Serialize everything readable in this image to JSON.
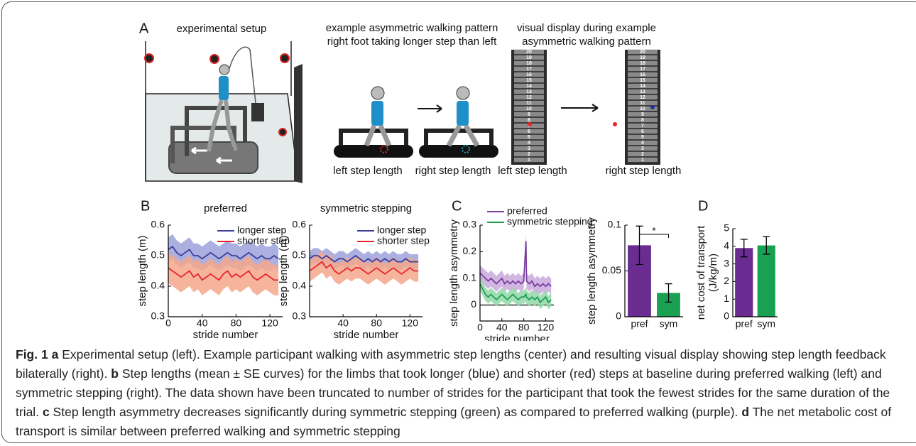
{
  "panel_labels": {
    "a": "A",
    "b": "B",
    "c": "C",
    "d": "D"
  },
  "panel_a": {
    "setup_title": "experimental setup",
    "walking_title": [
      "example asymmetric walking pattern",
      "right foot taking longer step than left"
    ],
    "display_title": [
      "visual display during example",
      "asymmetric walking pattern"
    ],
    "walking_labels": [
      "left step length",
      "right step length"
    ],
    "display_labels": [
      "left step length",
      "right step length"
    ],
    "display_numbers": [
      1,
      2,
      3,
      4,
      5,
      6,
      7,
      8,
      9,
      10,
      11,
      12,
      13,
      14,
      15,
      16,
      17,
      18,
      19,
      20
    ]
  },
  "chart_data": [
    {
      "type": "line",
      "title": "preferred",
      "xlabel": "stride number",
      "ylabel": "step length (m)",
      "x": [
        0,
        5,
        10,
        15,
        20,
        25,
        30,
        35,
        40,
        45,
        50,
        55,
        60,
        65,
        70,
        75,
        80,
        85,
        90,
        95,
        100,
        105,
        110,
        115,
        120,
        125,
        130
      ],
      "xlim": [
        0,
        135
      ],
      "xticks": [
        0,
        40,
        80,
        120
      ],
      "ylim": [
        0.3,
        0.6
      ],
      "yticks": [
        0.3,
        0.4,
        0.5,
        0.6
      ],
      "legend": "upper right",
      "series": [
        {
          "name": "longer step",
          "color": "#3c3f9c",
          "band_color": "#9ea2da",
          "values": [
            0.52,
            0.53,
            0.51,
            0.5,
            0.51,
            0.52,
            0.5,
            0.5,
            0.49,
            0.5,
            0.51,
            0.5,
            0.49,
            0.5,
            0.51,
            0.5,
            0.5,
            0.49,
            0.5,
            0.51,
            0.5,
            0.49,
            0.5,
            0.49,
            0.49,
            0.5,
            0.49
          ],
          "error": [
            0.04,
            0.04,
            0.04,
            0.04,
            0.04,
            0.04,
            0.04,
            0.04,
            0.04,
            0.04,
            0.04,
            0.04,
            0.04,
            0.04,
            0.04,
            0.04,
            0.04,
            0.04,
            0.04,
            0.04,
            0.04,
            0.04,
            0.04,
            0.04,
            0.04,
            0.04,
            0.04
          ]
        },
        {
          "name": "shorter step",
          "color": "#e8262b",
          "band_color": "#f5a78c",
          "values": [
            0.46,
            0.45,
            0.44,
            0.43,
            0.44,
            0.45,
            0.43,
            0.44,
            0.42,
            0.43,
            0.44,
            0.43,
            0.42,
            0.44,
            0.45,
            0.43,
            0.44,
            0.43,
            0.44,
            0.45,
            0.43,
            0.42,
            0.43,
            0.44,
            0.43,
            0.42,
            0.42
          ],
          "error": [
            0.05,
            0.05,
            0.05,
            0.05,
            0.05,
            0.05,
            0.05,
            0.05,
            0.05,
            0.05,
            0.05,
            0.05,
            0.05,
            0.05,
            0.05,
            0.05,
            0.05,
            0.05,
            0.05,
            0.05,
            0.05,
            0.05,
            0.05,
            0.05,
            0.05,
            0.05,
            0.05
          ]
        }
      ]
    },
    {
      "type": "line",
      "title": "symmetric stepping",
      "xlabel": "stride number",
      "ylabel": "step length (m)",
      "x": [
        0,
        5,
        10,
        15,
        20,
        25,
        30,
        35,
        40,
        45,
        50,
        55,
        60,
        65,
        70,
        75,
        80,
        85,
        90,
        95,
        100,
        105,
        110,
        115,
        120,
        125,
        130
      ],
      "xlim": [
        0,
        135
      ],
      "xticks": [
        40,
        80,
        120
      ],
      "ylim": [
        0.3,
        0.6
      ],
      "yticks": [
        0.3,
        0.4,
        0.5,
        0.6
      ],
      "legend": "upper right",
      "series": [
        {
          "name": "longer step",
          "color": "#3c3f9c",
          "band_color": "#9ea2da",
          "values": [
            0.49,
            0.5,
            0.5,
            0.49,
            0.5,
            0.49,
            0.48,
            0.49,
            0.49,
            0.48,
            0.49,
            0.5,
            0.49,
            0.48,
            0.49,
            0.48,
            0.49,
            0.48,
            0.49,
            0.48,
            0.49,
            0.48,
            0.48,
            0.49,
            0.48,
            0.48,
            0.48
          ],
          "error": [
            0.025,
            0.025,
            0.025,
            0.025,
            0.025,
            0.025,
            0.025,
            0.025,
            0.025,
            0.025,
            0.025,
            0.025,
            0.025,
            0.025,
            0.025,
            0.025,
            0.025,
            0.025,
            0.025,
            0.025,
            0.025,
            0.025,
            0.025,
            0.025,
            0.025,
            0.025,
            0.025
          ]
        },
        {
          "name": "shorter step",
          "color": "#e8262b",
          "band_color": "#f5a78c",
          "values": [
            0.45,
            0.46,
            0.47,
            0.48,
            0.46,
            0.47,
            0.45,
            0.44,
            0.45,
            0.46,
            0.45,
            0.46,
            0.46,
            0.45,
            0.44,
            0.45,
            0.46,
            0.45,
            0.44,
            0.45,
            0.46,
            0.45,
            0.44,
            0.45,
            0.46,
            0.45,
            0.45
          ],
          "error": [
            0.035,
            0.035,
            0.035,
            0.035,
            0.035,
            0.035,
            0.035,
            0.035,
            0.035,
            0.035,
            0.035,
            0.035,
            0.035,
            0.035,
            0.035,
            0.035,
            0.035,
            0.035,
            0.035,
            0.035,
            0.035,
            0.035,
            0.035,
            0.035,
            0.035,
            0.035,
            0.035
          ]
        }
      ]
    },
    {
      "type": "line",
      "xlabel": "stride number",
      "ylabel": "step length asymmetry",
      "x": [
        0,
        5,
        10,
        15,
        20,
        25,
        30,
        35,
        40,
        45,
        50,
        55,
        60,
        65,
        70,
        75,
        80,
        84,
        85,
        90,
        95,
        100,
        105,
        110,
        115,
        120,
        125,
        130
      ],
      "xlim": [
        0,
        135
      ],
      "xticks": [
        0,
        40,
        80,
        120
      ],
      "ylim": [
        -0.06,
        0.3
      ],
      "yticks": [
        0,
        0.1,
        0.2,
        0.3
      ],
      "legend": "top",
      "reference_line": 0,
      "series": [
        {
          "name": "preferred",
          "color": "#7a3c9e",
          "band_color": "#c9a9dd",
          "values": [
            0.12,
            0.11,
            0.1,
            0.09,
            0.1,
            0.09,
            0.08,
            0.09,
            0.1,
            0.08,
            0.09,
            0.08,
            0.09,
            0.08,
            0.09,
            0.08,
            0.09,
            0.24,
            0.09,
            0.08,
            0.09,
            0.07,
            0.08,
            0.07,
            0.08,
            0.07,
            0.08,
            0.07
          ],
          "error": [
            0.03,
            0.03,
            0.03,
            0.03,
            0.03,
            0.03,
            0.03,
            0.03,
            0.03,
            0.03,
            0.03,
            0.03,
            0.03,
            0.03,
            0.03,
            0.03,
            0.03,
            0.03,
            0.03,
            0.03,
            0.03,
            0.03,
            0.03,
            0.03,
            0.03,
            0.03,
            0.03,
            0.03
          ]
        },
        {
          "name": "symmetric stepping",
          "color": "#1d9f50",
          "band_color": "#92d8a8",
          "values": [
            0.08,
            0.06,
            0.04,
            0.03,
            0.04,
            0.03,
            0.02,
            0.03,
            0.04,
            0.03,
            0.02,
            0.03,
            0.04,
            0.03,
            0.02,
            0.03,
            0.03,
            0.04,
            0.03,
            0.02,
            0.03,
            0.02,
            0.03,
            0.01,
            0.02,
            0.03,
            0.01,
            0.02
          ],
          "error": [
            0.025,
            0.025,
            0.025,
            0.025,
            0.025,
            0.025,
            0.025,
            0.025,
            0.025,
            0.025,
            0.025,
            0.025,
            0.025,
            0.025,
            0.025,
            0.025,
            0.025,
            0.025,
            0.025,
            0.025,
            0.025,
            0.025,
            0.025,
            0.025,
            0.025,
            0.025,
            0.025,
            0.025
          ]
        }
      ]
    },
    {
      "type": "bar",
      "ylabel": "step length asymmetry",
      "categories": [
        "pref",
        "sym"
      ],
      "values": [
        0.078,
        0.026
      ],
      "error": [
        0.021,
        0.01
      ],
      "colors": [
        "#6a2c91",
        "#1aa053"
      ],
      "ylim": [
        0,
        0.1
      ],
      "yticks": [
        0,
        0.05,
        0.1
      ],
      "significance": "*"
    },
    {
      "type": "bar",
      "ylabel": [
        "net cost of transport",
        "(J/kg/m)"
      ],
      "categories": [
        "pref",
        "sym"
      ],
      "values": [
        3.9,
        4.05
      ],
      "error": [
        0.5,
        0.5
      ],
      "colors": [
        "#6a2c91",
        "#1aa053"
      ],
      "ylim": [
        0,
        5
      ],
      "yticks": [
        0,
        1,
        2,
        3,
        4,
        5
      ]
    }
  ],
  "caption": {
    "label": "Fig. 1",
    "parts": [
      {
        "letter": "a",
        "text": "Experimental setup (left). Example participant walking with asymmetric step lengths (center) and resulting visual display showing step length feedback bilaterally (right)."
      },
      {
        "letter": "b",
        "text": "Step lengths (mean ± SE curves) for the limbs that took longer (blue) and shorter (red) steps at baseline during preferred walking (left) and symmetric stepping (right). The data shown have been truncated to number of strides for the participant that took the fewest strides for the same duration of the trial."
      },
      {
        "letter": "c",
        "text": "Step length asymmetry decreases significantly during symmetric stepping (green) as compared to preferred walking (purple)."
      },
      {
        "letter": "d",
        "text": "The net metabolic cost of transport is similar between preferred walking and symmetric stepping"
      }
    ]
  }
}
